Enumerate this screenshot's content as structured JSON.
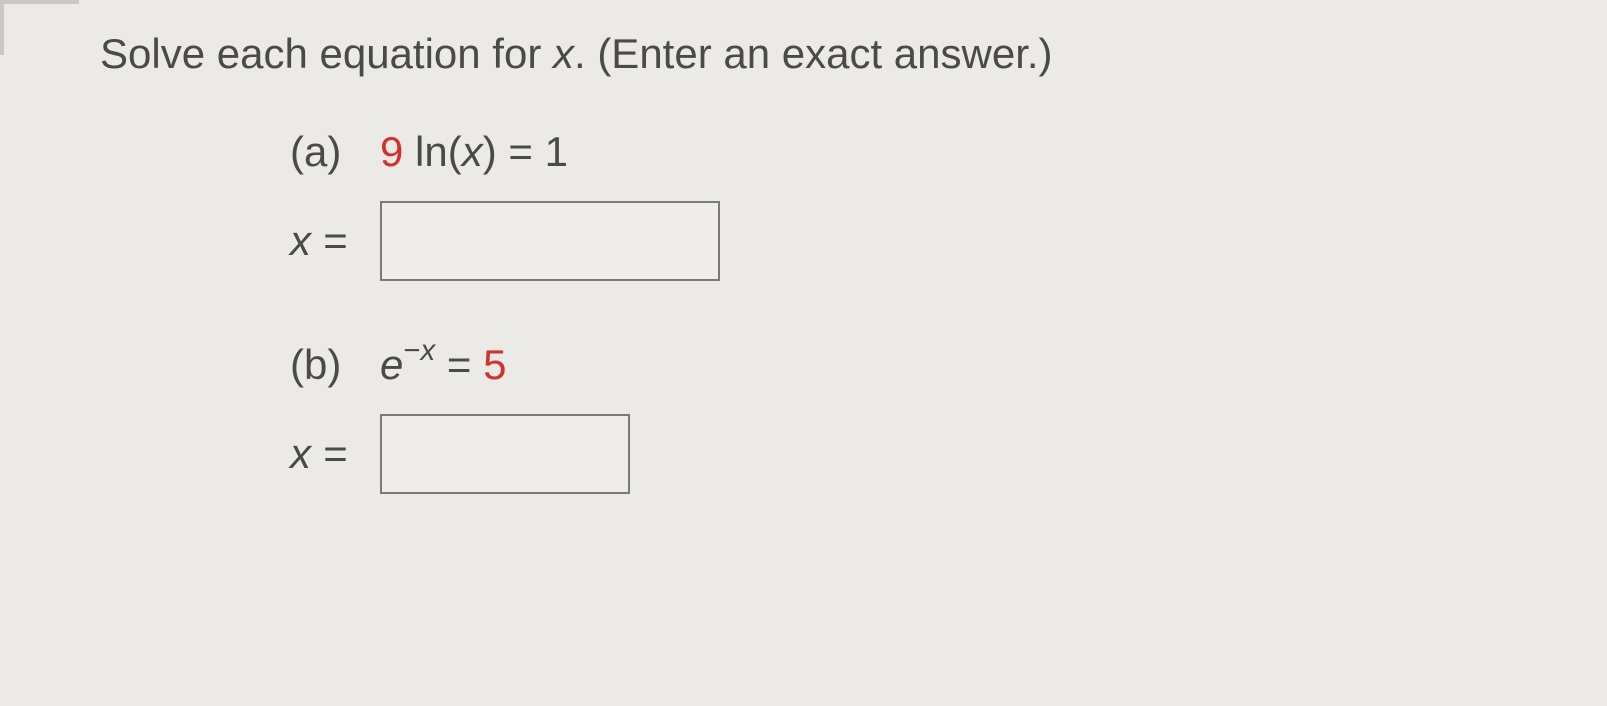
{
  "instruction_pre": "Solve each equation for ",
  "instruction_var": "x",
  "instruction_post": ". (Enter an exact answer.)",
  "parts": {
    "a": {
      "label": "(a)",
      "coeff": "9",
      "mid": " ln(",
      "var": "x",
      "tail": ") = 1",
      "xeq": "x =",
      "value": ""
    },
    "b": {
      "label": "(b)",
      "base": "e",
      "exp_neg": "−",
      "exp_var": "x",
      "eq": " = ",
      "rhs": "5",
      "xeq": "x =",
      "value": ""
    }
  }
}
